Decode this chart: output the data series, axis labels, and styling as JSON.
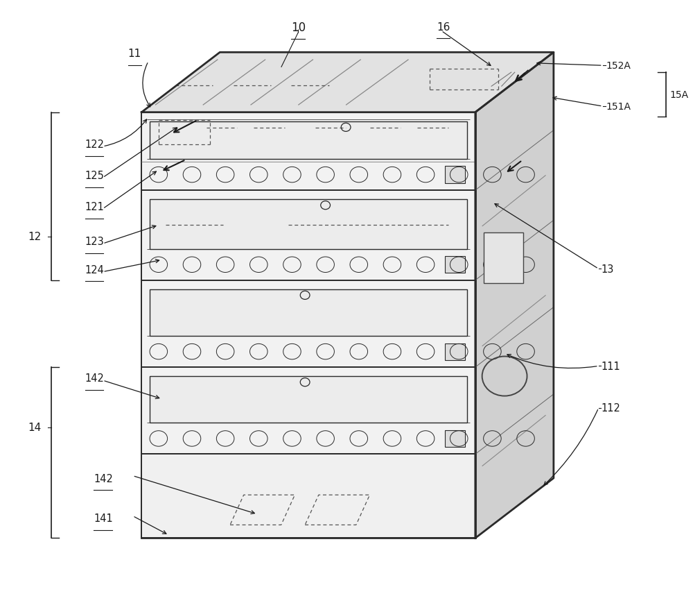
{
  "bg_color": "#ffffff",
  "lc": "#2a2a2a",
  "fig_w": 10.0,
  "fig_h": 8.7,
  "FL": 0.205,
  "FR": 0.695,
  "FB": 0.105,
  "FT": 0.815,
  "ox": 0.115,
  "oy": 0.1,
  "shelf_tops": [
    0.815,
    0.685,
    0.535,
    0.39,
    0.245
  ],
  "shelf_bots": [
    0.685,
    0.535,
    0.39,
    0.245,
    0.105
  ],
  "shelf1_has_display": true
}
